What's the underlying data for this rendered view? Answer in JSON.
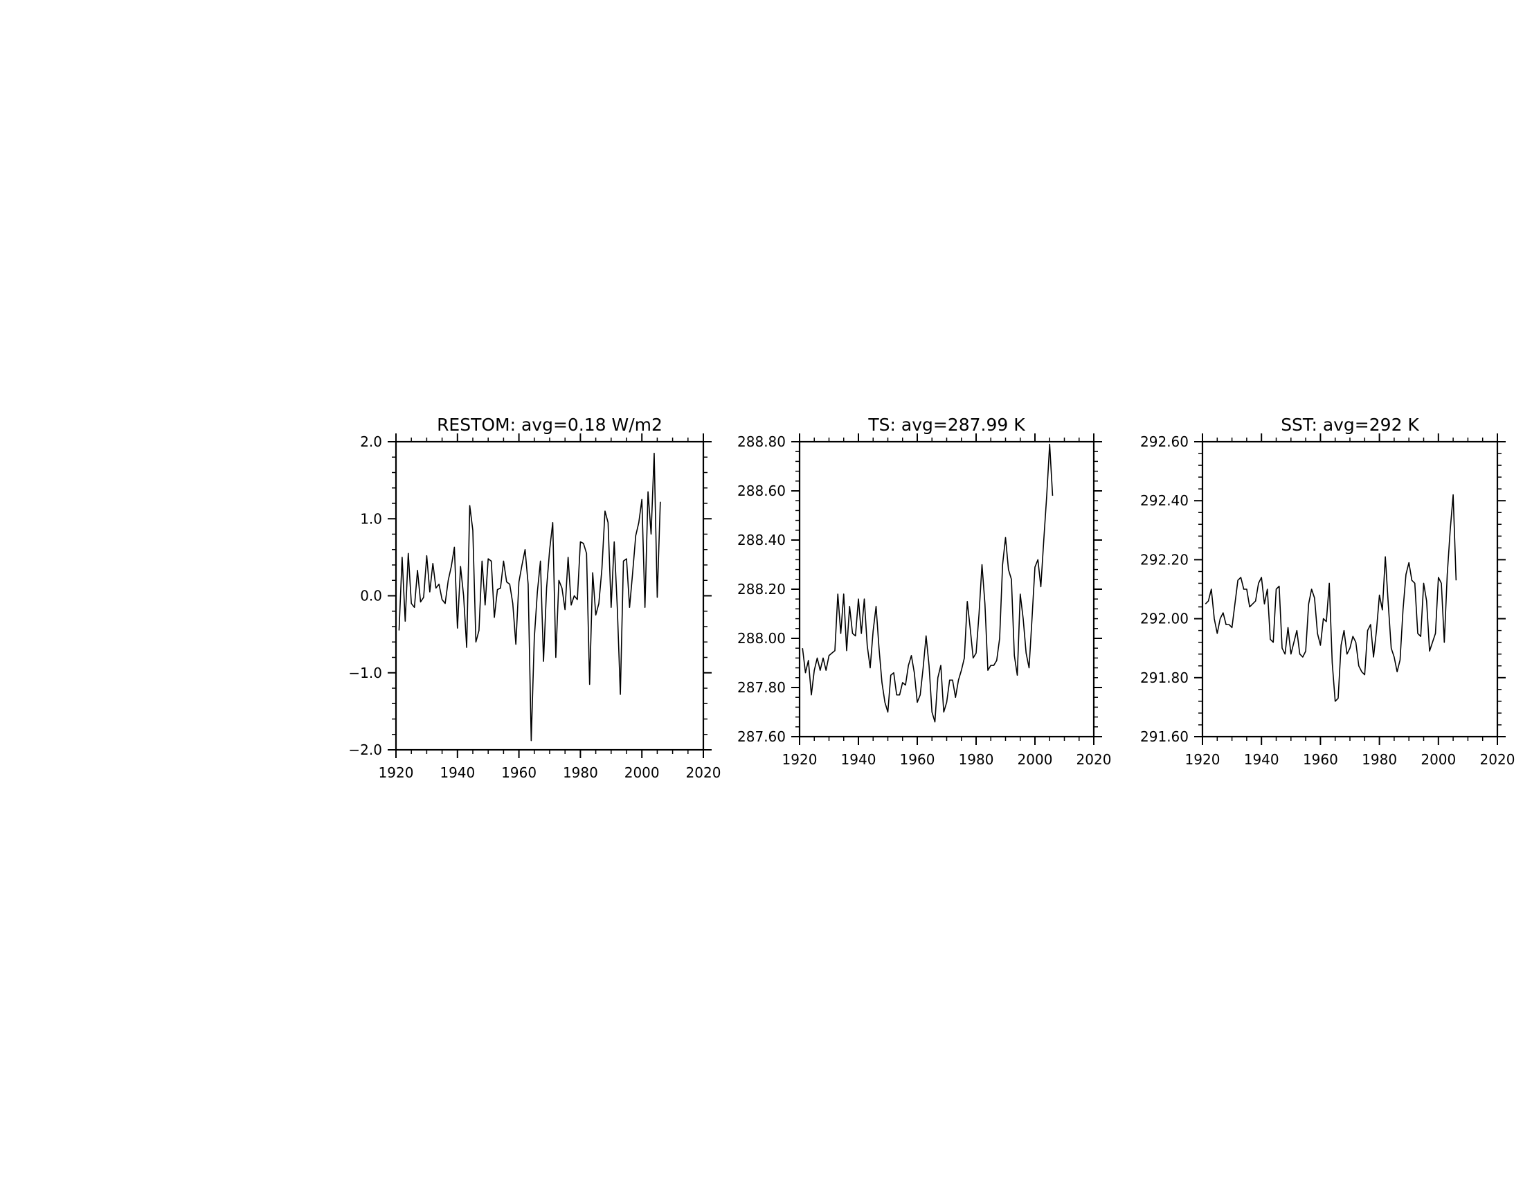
{
  "chart_data": [
    {
      "type": "line",
      "title": "RESTOM: avg=0.18 W/m2",
      "xlabel": "",
      "ylabel": "",
      "xlim": [
        1920,
        2020
      ],
      "ylim": [
        -2.0,
        2.0
      ],
      "x_ticks": [
        1920,
        1940,
        1960,
        1980,
        2000,
        2020
      ],
      "x_tick_labels": [
        "1920",
        "1940",
        "1960",
        "1980",
        "2000",
        "2020"
      ],
      "y_ticks": [
        -2.0,
        -1.0,
        0.0,
        1.0,
        2.0
      ],
      "y_tick_labels": [
        "−2.0",
        "−1.0",
        "0.0",
        "1.0",
        "2.0"
      ],
      "grid": false,
      "x_start": 1921,
      "values": [
        -0.45,
        0.5,
        -0.33,
        0.55,
        -0.1,
        -0.15,
        0.33,
        -0.08,
        -0.02,
        0.52,
        0.05,
        0.42,
        0.1,
        0.15,
        -0.05,
        -0.1,
        0.2,
        0.38,
        0.63,
        -0.42,
        0.38,
        0.0,
        -0.67,
        1.17,
        0.85,
        -0.6,
        -0.45,
        0.45,
        -0.12,
        0.48,
        0.45,
        -0.28,
        0.08,
        0.1,
        0.45,
        0.18,
        0.15,
        -0.1,
        -0.63,
        0.18,
        0.4,
        0.6,
        0.15,
        -1.88,
        -0.55,
        0.05,
        0.45,
        -0.85,
        0.1,
        0.6,
        0.95,
        -0.8,
        0.2,
        0.1,
        -0.18,
        0.5,
        -0.12,
        0.0,
        -0.05,
        0.7,
        0.68,
        0.55,
        -1.15,
        0.3,
        -0.25,
        -0.1,
        0.35,
        1.1,
        0.95,
        -0.15,
        0.7,
        -0.15,
        -1.28,
        0.45,
        0.48,
        -0.15,
        0.3,
        0.78,
        0.95,
        1.25,
        -0.15,
        1.35,
        0.8,
        1.85,
        -0.02,
        1.22
      ]
    },
    {
      "type": "line",
      "title": "TS: avg=287.99 K",
      "xlabel": "",
      "ylabel": "",
      "xlim": [
        1920,
        2020
      ],
      "ylim": [
        287.6,
        288.8
      ],
      "x_ticks": [
        1920,
        1940,
        1960,
        1980,
        2000,
        2020
      ],
      "x_tick_labels": [
        "1920",
        "1940",
        "1960",
        "1980",
        "2000",
        "2020"
      ],
      "y_ticks": [
        287.6,
        287.8,
        288.0,
        288.2,
        288.4,
        288.6,
        288.8
      ],
      "y_tick_labels": [
        "287.60",
        "287.80",
        "288.00",
        "288.20",
        "288.40",
        "288.60",
        "288.80"
      ],
      "grid": false,
      "x_start": 1921,
      "values": [
        287.96,
        287.86,
        287.91,
        287.77,
        287.87,
        287.92,
        287.87,
        287.92,
        287.87,
        287.93,
        287.94,
        287.95,
        288.18,
        288.02,
        288.18,
        287.95,
        288.13,
        288.02,
        288.01,
        288.16,
        288.02,
        288.16,
        287.97,
        287.88,
        288.03,
        288.13,
        287.96,
        287.82,
        287.74,
        287.7,
        287.85,
        287.86,
        287.77,
        287.77,
        287.82,
        287.81,
        287.89,
        287.93,
        287.86,
        287.74,
        287.77,
        287.88,
        288.01,
        287.89,
        287.7,
        287.66,
        287.84,
        287.89,
        287.7,
        287.74,
        287.83,
        287.83,
        287.76,
        287.83,
        287.87,
        287.92,
        288.15,
        288.04,
        287.92,
        287.94,
        288.1,
        288.3,
        288.14,
        287.87,
        287.89,
        287.89,
        287.91,
        288.0,
        288.3,
        288.41,
        288.28,
        288.24,
        287.93,
        287.85,
        288.18,
        288.08,
        287.94,
        287.88,
        288.08,
        288.29,
        288.32,
        288.21,
        288.4,
        288.58,
        288.79,
        288.58
      ]
    },
    {
      "type": "line",
      "title": "SST: avg=292 K",
      "xlabel": "",
      "ylabel": "",
      "xlim": [
        1920,
        2020
      ],
      "ylim": [
        291.6,
        292.6
      ],
      "x_ticks": [
        1920,
        1940,
        1960,
        1980,
        2000,
        2020
      ],
      "x_tick_labels": [
        "1920",
        "1940",
        "1960",
        "1980",
        "2000",
        "2020"
      ],
      "y_ticks": [
        291.6,
        291.8,
        292.0,
        292.2,
        292.4,
        292.6
      ],
      "y_tick_labels": [
        "291.60",
        "291.80",
        "292.00",
        "292.20",
        "292.40",
        "292.60"
      ],
      "grid": false,
      "x_start": 1921,
      "values": [
        292.05,
        292.06,
        292.1,
        292.0,
        291.95,
        292.0,
        292.02,
        291.98,
        291.98,
        291.97,
        292.05,
        292.13,
        292.14,
        292.1,
        292.1,
        292.04,
        292.05,
        292.06,
        292.12,
        292.14,
        292.05,
        292.1,
        291.93,
        291.92,
        292.1,
        292.11,
        291.9,
        291.88,
        291.97,
        291.88,
        291.92,
        291.96,
        291.88,
        291.87,
        291.89,
        292.05,
        292.1,
        292.07,
        291.95,
        291.91,
        292.0,
        291.99,
        292.12,
        291.85,
        291.72,
        291.73,
        291.91,
        291.96,
        291.88,
        291.9,
        291.94,
        291.92,
        291.84,
        291.82,
        291.81,
        291.96,
        291.98,
        291.87,
        291.96,
        292.08,
        292.03,
        292.21,
        292.05,
        291.9,
        291.87,
        291.82,
        291.86,
        292.03,
        292.15,
        292.19,
        292.13,
        292.12,
        291.95,
        291.94,
        292.12,
        292.06,
        291.89,
        291.92,
        291.95,
        292.14,
        292.12,
        291.92,
        292.15,
        292.3,
        292.42,
        292.13
      ]
    }
  ]
}
